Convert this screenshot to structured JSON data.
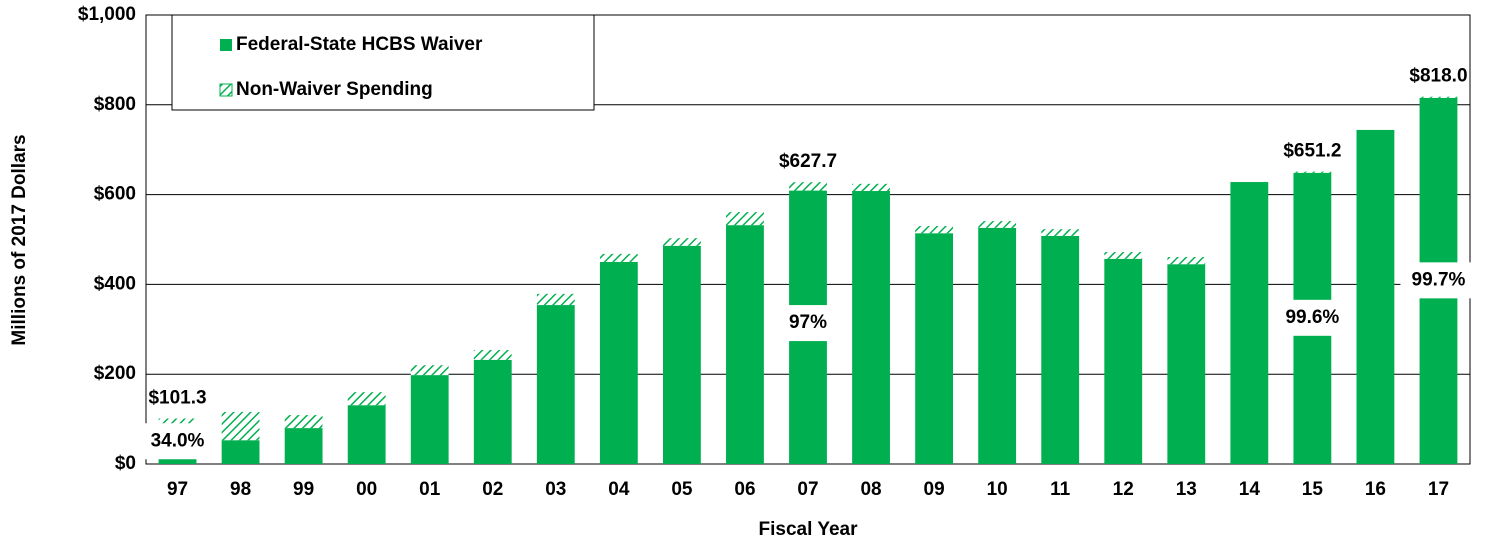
{
  "chart_data": {
    "type": "stacked_bar",
    "x_label": "Fiscal Year",
    "y_label": "Millions of 2017 Dollars",
    "categories": [
      "97",
      "98",
      "99",
      "00",
      "01",
      "02",
      "03",
      "04",
      "05",
      "06",
      "07",
      "08",
      "09",
      "10",
      "11",
      "12",
      "13",
      "14",
      "15",
      "16",
      "17"
    ],
    "series": [
      {
        "name": "Federal-State HCBS Waiver",
        "color": "#00b050",
        "pattern": "solid",
        "values": [
          34.4,
          53,
          80,
          131,
          198,
          232,
          354,
          450,
          486,
          532,
          609,
          608,
          514,
          526,
          508,
          457,
          445,
          628,
          648.6,
          744,
          815.5
        ]
      },
      {
        "name": "Non-Waiver Spending",
        "color": "#00b050",
        "pattern": "hatched",
        "values": [
          66.9,
          63,
          29,
          29,
          22,
          22,
          25,
          18,
          17,
          29,
          18.7,
          16,
          16,
          15,
          15,
          15,
          16,
          0,
          2.6,
          0,
          2.5
        ]
      }
    ],
    "total_labels": [
      "$101.3",
      null,
      null,
      null,
      null,
      null,
      null,
      null,
      null,
      null,
      "$627.7",
      null,
      null,
      null,
      null,
      null,
      null,
      null,
      "$651.2",
      null,
      "$818.0"
    ],
    "share_labels": [
      "34.0%",
      null,
      null,
      null,
      null,
      null,
      null,
      null,
      null,
      null,
      "97%",
      null,
      null,
      null,
      null,
      null,
      null,
      null,
      "99.6%",
      null,
      "99.7%"
    ],
    "ylim": [
      0,
      1000
    ],
    "yticks": [
      {
        "value": 0,
        "label": "$0"
      },
      {
        "value": 200,
        "label": "$200"
      },
      {
        "value": 400,
        "label": "$400"
      },
      {
        "value": 600,
        "label": "$600"
      },
      {
        "value": 800,
        "label": "$800"
      },
      {
        "value": 1000,
        "label": "$1,000"
      }
    ],
    "grid": true,
    "legend": "upper left"
  }
}
